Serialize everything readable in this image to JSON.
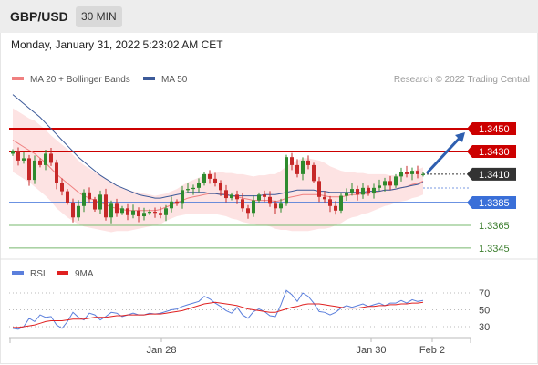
{
  "header": {
    "symbol": "GBP/USD",
    "timeframe": "30 MIN",
    "datetime": "Monday, January 31, 2022 5:23:02 AM CET"
  },
  "credit": "Research © 2022 Trading Central",
  "colors": {
    "resistance": "#cc0000",
    "pivot": "#3a6fd8",
    "support": "#77b86d",
    "ma20": "#f08080",
    "ma50": "#3c5a99",
    "bands_fill": "#fde3e3",
    "candle_up": "#2e8b2e",
    "candle_down": "#c62828",
    "rsi": "#5b7fdc",
    "rsi_ma": "#e02020",
    "arrow": "#2f5fb0"
  },
  "chart_data": [
    {
      "type": "candlestick",
      "title": "GBP/USD",
      "timeframe": "30 MIN",
      "legend": [
        {
          "name": "MA 20 + Bollinger Bands",
          "color": "#f08080"
        },
        {
          "name": "MA 50",
          "color": "#3c5a99"
        }
      ],
      "x_ticks": [
        "Jan 28",
        "Jan 30",
        "Feb 2"
      ],
      "last_price": 1.341,
      "levels": [
        {
          "value": 1.345,
          "label": "1.3450",
          "role": "resistance",
          "style": "box"
        },
        {
          "value": 1.343,
          "label": "1.3430",
          "role": "resistance",
          "style": "box"
        },
        {
          "value": 1.3385,
          "label": "1.3385",
          "role": "pivot",
          "style": "box"
        },
        {
          "value": 1.3365,
          "label": "1.3365",
          "role": "support",
          "style": "text"
        },
        {
          "value": 1.3345,
          "label": "1.3345",
          "role": "support",
          "style": "text"
        }
      ],
      "closes": [
        1.343,
        1.3422,
        1.3424,
        1.3405,
        1.3422,
        1.3418,
        1.3428,
        1.342,
        1.3402,
        1.3395,
        1.3385,
        1.3372,
        1.3382,
        1.3394,
        1.3388,
        1.3379,
        1.3392,
        1.3372,
        1.3384,
        1.3376,
        1.338,
        1.3374,
        1.3378,
        1.3373,
        1.3376,
        1.3377,
        1.3376,
        1.3374,
        1.338,
        1.3386,
        1.3384,
        1.3396,
        1.3397,
        1.3398,
        1.3402,
        1.341,
        1.3406,
        1.3402,
        1.3396,
        1.3389,
        1.3392,
        1.3388,
        1.338,
        1.3376,
        1.3387,
        1.3392,
        1.339,
        1.3384,
        1.338,
        1.3384,
        1.3425,
        1.3418,
        1.341,
        1.3422,
        1.3418,
        1.3404,
        1.339,
        1.3388,
        1.3382,
        1.3378,
        1.3391,
        1.3394,
        1.3397,
        1.3392,
        1.3398,
        1.3393,
        1.3398,
        1.34,
        1.3404,
        1.34,
        1.3408,
        1.3412,
        1.341,
        1.3413,
        1.341,
        1.341
      ],
      "ma20": [
        1.344,
        1.3437,
        1.3434,
        1.3431,
        1.3428,
        1.3424,
        1.342,
        1.3415,
        1.341,
        1.3406,
        1.3402,
        1.3398,
        1.3394,
        1.3391,
        1.3389,
        1.3387,
        1.3385,
        1.3383,
        1.3381,
        1.338,
        1.3379,
        1.3378,
        1.3378,
        1.3378,
        1.3378,
        1.3378,
        1.3378,
        1.3379,
        1.3381,
        1.3383,
        1.3385,
        1.3387,
        1.3389,
        1.339,
        1.3391,
        1.3392,
        1.3393,
        1.3393,
        1.3393,
        1.3392,
        1.3391,
        1.339,
        1.3389,
        1.3388,
        1.3387,
        1.3387,
        1.3387,
        1.3387,
        1.3386,
        1.3387,
        1.3389,
        1.339,
        1.3391,
        1.3392,
        1.3392,
        1.3392,
        1.3392,
        1.3391,
        1.339,
        1.339,
        1.339,
        1.3391,
        1.3392,
        1.3392,
        1.3393,
        1.3393,
        1.3394,
        1.3395,
        1.3396,
        1.3396,
        1.3397,
        1.3398,
        1.3399,
        1.3401,
        1.3402,
        1.3404
      ],
      "ma50": [
        1.348,
        1.3476,
        1.3472,
        1.3468,
        1.3464,
        1.346,
        1.3455,
        1.345,
        1.3445,
        1.344,
        1.3435,
        1.343,
        1.3425,
        1.3421,
        1.3417,
        1.3413,
        1.3409,
        1.3406,
        1.3403,
        1.34,
        1.3398,
        1.3396,
        1.3394,
        1.3392,
        1.3391,
        1.339,
        1.3389,
        1.3389,
        1.339,
        1.3391,
        1.3392,
        1.3393,
        1.3394,
        1.3394,
        1.3394,
        1.3394,
        1.3393,
        1.3393,
        1.3392,
        1.3392,
        1.3391,
        1.3391,
        1.3391,
        1.3391,
        1.3391,
        1.3391,
        1.3392,
        1.3392,
        1.3392,
        1.3393,
        1.3394,
        1.3395,
        1.3396,
        1.3396,
        1.3396,
        1.3396,
        1.3395,
        1.3395,
        1.3394,
        1.3394,
        1.3394,
        1.3394,
        1.3394,
        1.3394,
        1.3394,
        1.3395,
        1.3395,
        1.3395,
        1.3396,
        1.3396,
        1.3397,
        1.3398,
        1.3399,
        1.34,
        1.3401,
        1.3403
      ],
      "band_width": [
        0.0028,
        0.0028,
        0.0028,
        0.0028,
        0.0029,
        0.0029,
        0.0029,
        0.0029,
        0.003,
        0.003,
        0.003,
        0.0029,
        0.0028,
        0.0027,
        0.0026,
        0.0025,
        0.0024,
        0.0023,
        0.0022,
        0.002,
        0.0019,
        0.0018,
        0.0017,
        0.0016,
        0.0015,
        0.0014,
        0.0013,
        0.0013,
        0.0012,
        0.0012,
        0.0012,
        0.0013,
        0.0014,
        0.0015,
        0.0016,
        0.0017,
        0.0018,
        0.0018,
        0.0019,
        0.0019,
        0.002,
        0.002,
        0.0021,
        0.0021,
        0.0021,
        0.0022,
        0.0022,
        0.0023,
        0.0024,
        0.0026,
        0.0028,
        0.003,
        0.0031,
        0.0032,
        0.0032,
        0.0031,
        0.003,
        0.0029,
        0.0027,
        0.0025,
        0.0023,
        0.0021,
        0.002,
        0.0019,
        0.0018,
        0.0017,
        0.0016,
        0.0015,
        0.0014,
        0.0013,
        0.0012,
        0.0012,
        0.0012,
        0.0012,
        0.0012,
        0.0012
      ],
      "forecast": {
        "from": 1.341,
        "to": 1.343,
        "direction": "up"
      }
    },
    {
      "type": "line",
      "legend": [
        {
          "name": "RSI",
          "color": "#5b7fdc"
        },
        {
          "name": "9MA",
          "color": "#e02020"
        }
      ],
      "y_ticks": [
        "70",
        "50",
        "30"
      ],
      "ylim": [
        10,
        80
      ],
      "rsi": [
        28,
        27,
        30,
        40,
        36,
        44,
        41,
        42,
        32,
        28,
        36,
        47,
        41,
        38,
        46,
        44,
        38,
        42,
        47,
        46,
        42,
        44,
        46,
        44,
        44,
        46,
        45,
        46,
        48,
        50,
        51,
        54,
        56,
        58,
        60,
        66,
        63,
        58,
        54,
        49,
        46,
        53,
        44,
        40,
        48,
        51,
        48,
        43,
        42,
        56,
        73,
        68,
        60,
        70,
        66,
        58,
        48,
        47,
        44,
        47,
        52,
        55,
        53,
        55,
        57,
        54,
        56,
        58,
        55,
        58,
        58,
        61,
        58,
        62,
        60,
        61
      ],
      "ma9": [
        29,
        29,
        30,
        31,
        32,
        34,
        36,
        37,
        37,
        37,
        38,
        39,
        39,
        39,
        40,
        41,
        41,
        41,
        42,
        43,
        43,
        44,
        44,
        44,
        44,
        45,
        45,
        45,
        46,
        47,
        48,
        49,
        51,
        53,
        55,
        57,
        58,
        59,
        58,
        57,
        56,
        55,
        53,
        51,
        50,
        49,
        48,
        47,
        47,
        49,
        51,
        53,
        54,
        56,
        57,
        57,
        57,
        56,
        55,
        54,
        53,
        52,
        52,
        52,
        53,
        54,
        54,
        55,
        55,
        56,
        56,
        57,
        57,
        58,
        58,
        59
      ]
    }
  ]
}
